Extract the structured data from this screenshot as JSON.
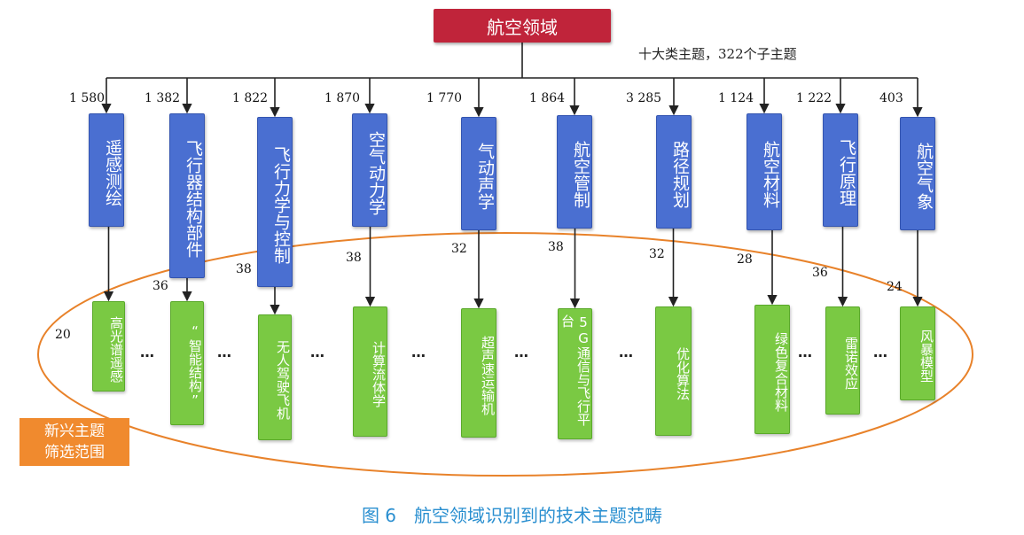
{
  "root": {
    "label": "航空领域",
    "note": "十大类主题，322个子主题"
  },
  "categories": [
    {
      "label": "遥感测绘",
      "count": "1 580",
      "sub": "高光谱遥感",
      "sub_count": "20"
    },
    {
      "label": "飞行器结构部件",
      "count": "1 382",
      "sub": "“智能结构”",
      "sub_count": "36"
    },
    {
      "label": "飞行力学与控制",
      "count": "1 822",
      "sub": "无人驾驶飞机",
      "sub_count": "38"
    },
    {
      "label": "空气动力学",
      "count": "1 870",
      "sub": "计算流体学",
      "sub_count": "38"
    },
    {
      "label": "气动声学",
      "count": "1 770",
      "sub": "超声速运输机",
      "sub_count": "32"
    },
    {
      "label": "航空管制",
      "count": "1 864",
      "sub": "5G通信与飞行平台",
      "sub_count": "38"
    },
    {
      "label": "路径规划",
      "count": "3 285",
      "sub": "优化算法",
      "sub_count": "32"
    },
    {
      "label": "航空材料",
      "count": "1 124",
      "sub": "绿色复合材料",
      "sub_count": "28"
    },
    {
      "label": "飞行原理",
      "count": "1 222",
      "sub": "雷诺效应",
      "sub_count": "36"
    },
    {
      "label": "航空气象",
      "count": "403",
      "sub": "风暴模型",
      "sub_count": "24"
    }
  ],
  "ellipsis": "…",
  "emerging_label": [
    "新兴主题",
    "筛选范围"
  ],
  "caption": "图 6　航空领域识别到的技术主题范畴",
  "colors": {
    "root": "#c0243a",
    "category": "#4a6fd1",
    "subtopic": "#7ac943",
    "ellipse": "#e8822a",
    "caption": "#2a8fd0"
  }
}
